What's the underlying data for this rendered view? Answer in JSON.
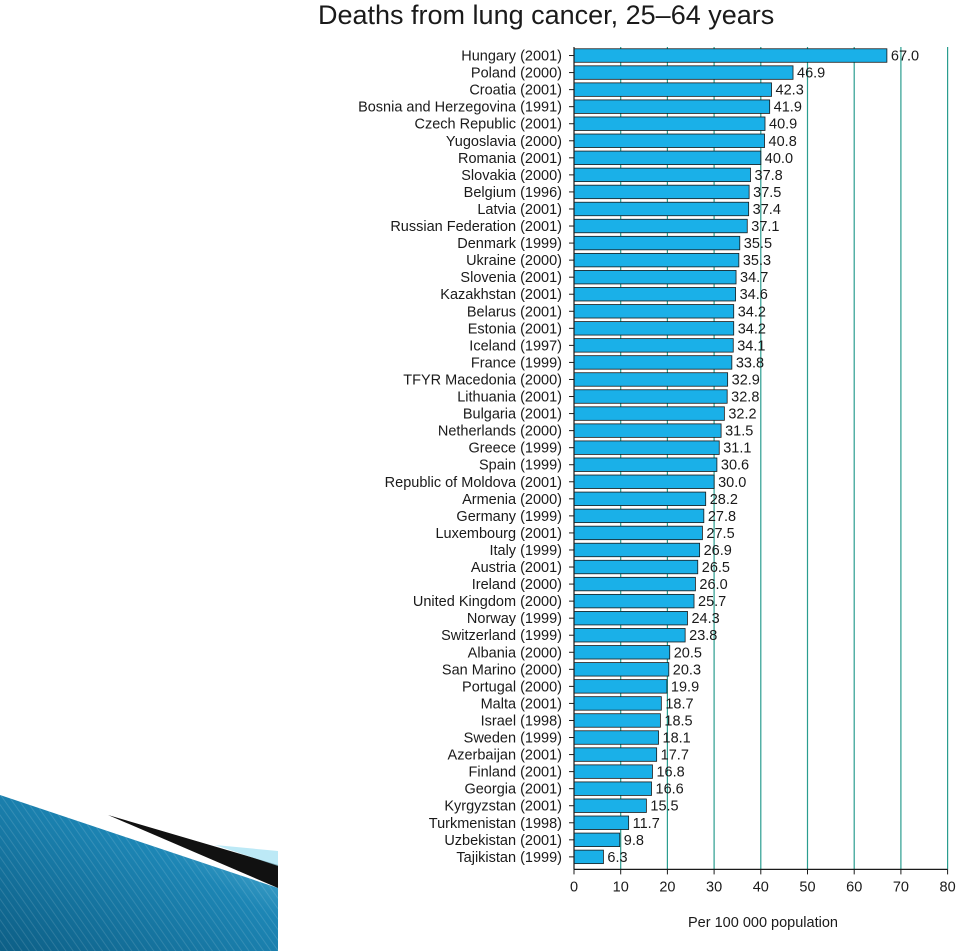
{
  "chart_data": {
    "type": "bar",
    "orientation": "horizontal",
    "title": "Deaths from lung cancer, 25–64 years",
    "xlabel": "Per 100 000 population",
    "ylabel": "",
    "xlim": [
      0,
      80
    ],
    "ticks": [
      "0",
      "10",
      "20",
      "30",
      "40",
      "50",
      "60",
      "70",
      "80"
    ],
    "grid": true,
    "bar_color": "#1ab0e8",
    "grid_color": "#2a9d8f",
    "categories": [
      "Hungary (2001)",
      "Poland (2000)",
      "Croatia (2001)",
      "Bosnia and Herzegovina (1991)",
      "Czech Republic (2001)",
      "Yugoslavia (2000)",
      "Romania (2001)",
      "Slovakia (2000)",
      "Belgium (1996)",
      "Latvia (2001)",
      "Russian Federation (2001)",
      "Denmark (1999)",
      "Ukraine (2000)",
      "Slovenia (2001)",
      "Kazakhstan (2001)",
      "Belarus (2001)",
      "Estonia (2001)",
      "Iceland (1997)",
      "France (1999)",
      "TFYR Macedonia (2000)",
      "Lithuania (2001)",
      "Bulgaria (2001)",
      "Netherlands (2000)",
      "Greece (1999)",
      "Spain (1999)",
      "Republic of Moldova (2001)",
      "Armenia (2000)",
      "Germany (1999)",
      "Luxembourg (2001)",
      "Italy (1999)",
      "Austria (2001)",
      "Ireland (2000)",
      "United Kingdom (2000)",
      "Norway (1999)",
      "Switzerland (1999)",
      "Albania (2000)",
      "San Marino (2000)",
      "Portugal (2000)",
      "Malta (2001)",
      "Israel (1998)",
      "Sweden (1999)",
      "Azerbaijan (2001)",
      "Finland (2001)",
      "Georgia (2001)",
      "Kyrgyzstan (2001)",
      "Turkmenistan (1998)",
      "Uzbekistan (2001)",
      "Tajikistan (1999)"
    ],
    "values": [
      67.0,
      46.9,
      42.3,
      41.9,
      40.9,
      40.8,
      40.0,
      37.8,
      37.5,
      37.4,
      37.1,
      35.5,
      35.3,
      34.7,
      34.6,
      34.2,
      34.2,
      34.1,
      33.8,
      32.9,
      32.8,
      32.2,
      31.5,
      31.1,
      30.6,
      30.0,
      28.2,
      27.8,
      27.5,
      26.9,
      26.5,
      26.0,
      25.7,
      24.3,
      23.8,
      20.5,
      20.3,
      19.9,
      18.7,
      18.5,
      18.1,
      17.7,
      16.8,
      16.6,
      15.5,
      11.7,
      9.8,
      6.3
    ],
    "value_labels": [
      "67.0",
      "46.9",
      "42.3",
      "41.9",
      "40.9",
      "40.8",
      "40.0",
      "37.8",
      "37.5",
      "37.4",
      "37.1",
      "35.5",
      "35.3",
      "34.7",
      "34.6",
      "34.2",
      "34.2",
      "34.1",
      "33.8",
      "32.9",
      "32.8",
      "32.2",
      "31.5",
      "31.1",
      "30.6",
      "30.0",
      "28.2",
      "27.8",
      "27.5",
      "26.9",
      "26.5",
      "26.0",
      "25.7",
      "24.3",
      "23.8",
      "20.5",
      "20.3",
      "19.9",
      "18.7",
      "18.5",
      "18.1",
      "17.7",
      "16.8",
      "16.6",
      "15.5",
      "11.7",
      "9.8",
      "6.3"
    ]
  }
}
